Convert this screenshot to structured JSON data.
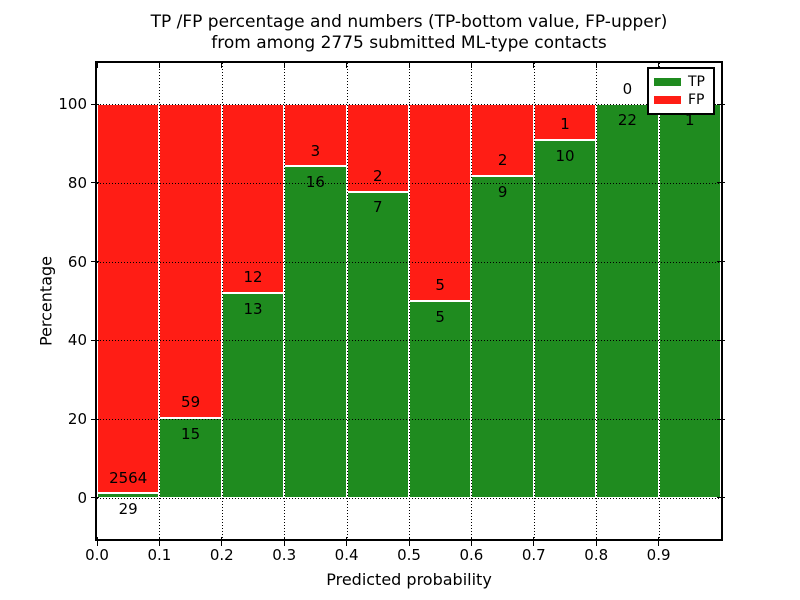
{
  "title": {
    "line1": "TP /FP percentage and numbers (TP-bottom value, FP-upper)",
    "line2": "from among 2775 submitted ML-type contacts"
  },
  "chart_data": {
    "type": "bar",
    "stacked": true,
    "title": "TP /FP percentage and numbers (TP-bottom value, FP-upper) from among 2775 submitted ML-type contacts",
    "xlabel": "Predicted probability",
    "ylabel": "Percentage",
    "xlim": [
      0.0,
      1.0
    ],
    "ylim": [
      -10.5,
      110.5
    ],
    "bin_width": 0.1,
    "bin_starts": [
      0.0,
      0.1,
      0.2,
      0.3,
      0.4,
      0.5,
      0.6,
      0.7,
      0.8,
      0.9
    ],
    "xtick_labels": [
      "0.0",
      "0.1",
      "0.2",
      "0.3",
      "0.4",
      "0.5",
      "0.6",
      "0.7",
      "0.8",
      "0.9"
    ],
    "yticks": [
      0,
      20,
      40,
      60,
      80,
      100
    ],
    "grid": true,
    "grid_linestyle": "dotted",
    "bar_mode": "each bin stacked to 100%; green height = TP/(TP+FP) percent",
    "series": [
      {
        "name": "TP",
        "color": "#1f8b1f",
        "counts": [
          29,
          15,
          13,
          16,
          7,
          5,
          9,
          10,
          22,
          1
        ],
        "labels": [
          "29",
          "15",
          "13",
          "16",
          "7",
          "5",
          "9",
          "10",
          "22",
          "1"
        ]
      },
      {
        "name": "FP",
        "color": "#ff1d15",
        "counts": [
          2564,
          59,
          12,
          3,
          2,
          5,
          2,
          1,
          0,
          0
        ],
        "labels": [
          "2564",
          "59",
          "12",
          "3",
          "2",
          "5",
          "2",
          "1",
          "0",
          ""
        ]
      }
    ],
    "tp_percent_per_bin": [
      1.12,
      20.27,
      52.0,
      84.21,
      77.78,
      50.0,
      81.82,
      90.91,
      100.0,
      100.0
    ],
    "legend": {
      "position": "upper right",
      "entries": [
        "TP",
        "FP"
      ]
    },
    "total_submitted": 2775
  },
  "colors": {
    "tp": "#1f8b1f",
    "fp": "#ff1d15",
    "grid": "#000000",
    "text": "#000000",
    "background": "#ffffff"
  }
}
